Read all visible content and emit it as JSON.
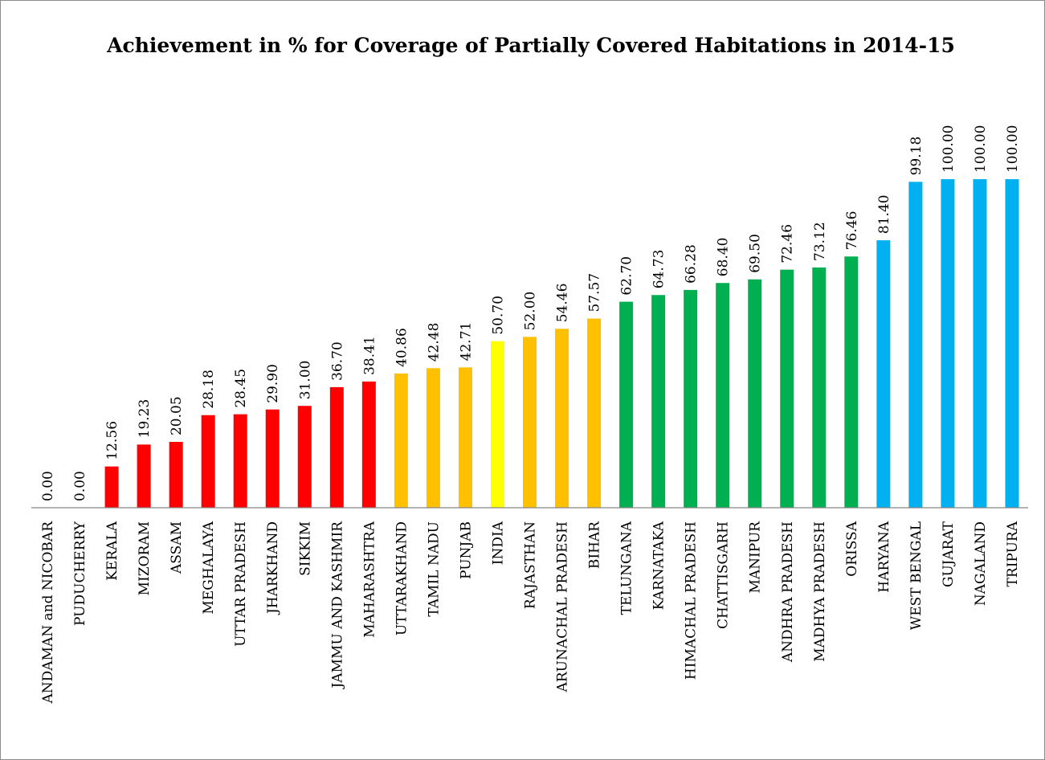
{
  "chart_data": {
    "type": "bar",
    "title": "Achievement in % for Coverage of Partially Covered Habitations in 2014-15",
    "xlabel": "",
    "ylabel": "",
    "ylim": [
      0,
      100
    ],
    "grid": false,
    "legend": "none",
    "categories": [
      "ANDAMAN and NICOBAR",
      "PUDUCHERRY",
      "KERALA",
      "MIZORAM",
      "ASSAM",
      "MEGHALAYA",
      "UTTAR PRADESH",
      "JHARKHAND",
      "SIKKIM",
      "JAMMU AND KASHMIR",
      "MAHARASHTRA",
      "UTTARAKHAND",
      "TAMIL NADU",
      "PUNJAB",
      "INDIA",
      "RAJASTHAN",
      "ARUNACHAL PRADESH",
      "BIHAR",
      "TELUNGANA",
      "KARNATAKA",
      "HIMACHAL PRADESH",
      "CHATTISGARH",
      "MANIPUR",
      "ANDHRA PRADESH",
      "MADHYA PRADESH",
      "ORISSA",
      "HARYANA",
      "WEST BENGAL",
      "GUJARAT",
      "NAGALAND",
      "TRIPURA"
    ],
    "values": [
      0,
      0,
      12.56,
      19.23,
      20.05,
      28.18,
      28.45,
      29.9,
      31.0,
      36.7,
      38.41,
      40.86,
      42.48,
      42.71,
      50.7,
      52.0,
      54.46,
      57.57,
      62.7,
      64.73,
      66.28,
      68.4,
      69.5,
      72.46,
      73.12,
      76.46,
      81.4,
      99.18,
      100.0,
      100.0,
      100.0
    ],
    "data_labels": [
      "0.00",
      "0.00",
      "12.56",
      "19.23",
      "20.05",
      "28.18",
      "28.45",
      "29.90",
      "31.00",
      "36.70",
      "38.41",
      "40.86",
      "42.48",
      "42.71",
      "50.70",
      "52.00",
      "54.46",
      "57.57",
      "62.70",
      "64.73",
      "66.28",
      "68.40",
      "69.50",
      "72.46",
      "73.12",
      "76.46",
      "81.40",
      "99.18",
      "100.00",
      "100.00",
      "100.00"
    ],
    "colors": [
      "#ff0000",
      "#ff0000",
      "#ff0000",
      "#ff0000",
      "#ff0000",
      "#ff0000",
      "#ff0000",
      "#ff0000",
      "#ff0000",
      "#ff0000",
      "#ff0000",
      "#ffc000",
      "#ffc000",
      "#ffc000",
      "#ffff00",
      "#ffc000",
      "#ffc000",
      "#ffc000",
      "#00b050",
      "#00b050",
      "#00b050",
      "#00b050",
      "#00b050",
      "#00b050",
      "#00b050",
      "#00b050",
      "#00b0f0",
      "#00b0f0",
      "#00b0f0",
      "#00b0f0",
      "#00b0f0"
    ]
  }
}
